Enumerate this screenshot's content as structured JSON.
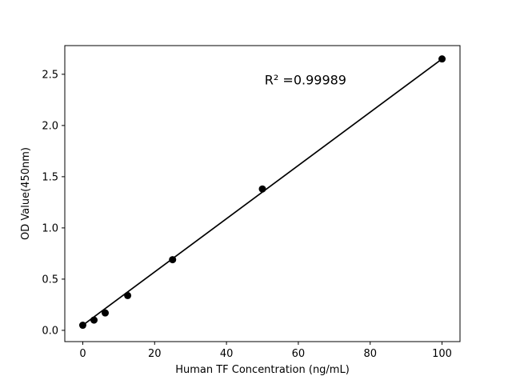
{
  "figure": {
    "background": "#ffffff"
  },
  "chart_data": {
    "type": "scatter",
    "title": "",
    "xlabel": "Human TF Concentration (ng/mL)",
    "ylabel": "OD Value(450nm)",
    "x": [
      0,
      3.125,
      6.25,
      12.5,
      25,
      50,
      100
    ],
    "y": [
      0.05,
      0.1,
      0.17,
      0.34,
      0.69,
      1.38,
      2.65
    ],
    "fit_line": {
      "x1": 0,
      "y1": 0.05,
      "x2": 100,
      "y2": 2.65
    },
    "annotation": {
      "text": "R² =0.99989",
      "x": 62,
      "y": 2.44
    },
    "xticks": [
      0,
      20,
      40,
      60,
      80,
      100
    ],
    "yticks": [
      0.0,
      0.5,
      1.0,
      1.5,
      2.0,
      2.5
    ],
    "xlim": [
      -5,
      105
    ],
    "ylim": [
      -0.11,
      2.78
    ],
    "grid": false,
    "legend": "none",
    "marker_color": "#000000",
    "line_color": "#000000",
    "axis_color": "#000000"
  }
}
